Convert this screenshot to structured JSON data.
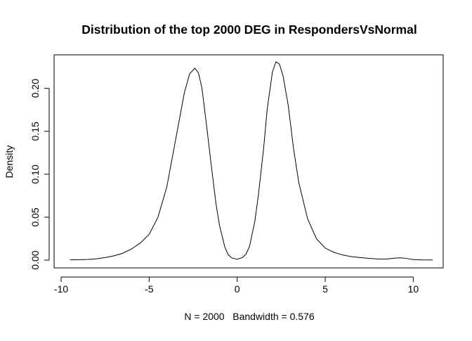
{
  "chart_data": {
    "type": "line",
    "title": "Distribution of the top 2000 DEG in RespondersVsNormal",
    "xlabel": "N = 2000   Bandwidth = 0.576",
    "ylabel": "Density",
    "xlim": [
      -10.4,
      11.7
    ],
    "ylim": [
      -0.009,
      0.239
    ],
    "xticks": [
      -10,
      -5,
      0,
      5,
      10
    ],
    "xtick_labels": [
      "-10",
      "-5",
      "0",
      "5",
      "10"
    ],
    "yticks": [
      0.0,
      0.05,
      0.1,
      0.15,
      0.2
    ],
    "ytick_labels": [
      "0.00",
      "0.05",
      "0.10",
      "0.15",
      "0.20"
    ],
    "grid": false,
    "series": [
      {
        "x": [
          -9.5,
          -9.0,
          -8.5,
          -8.0,
          -7.5,
          -7.0,
          -6.5,
          -6.0,
          -5.5,
          -5.0,
          -4.5,
          -4.0,
          -3.5,
          -3.0,
          -2.7,
          -2.4,
          -2.2,
          -2.0,
          -1.7,
          -1.5,
          -1.2,
          -1.0,
          -0.7,
          -0.5,
          -0.3,
          0.0,
          0.3,
          0.5,
          0.7,
          1.0,
          1.2,
          1.5,
          1.7,
          2.0,
          2.2,
          2.4,
          2.6,
          2.9,
          3.2,
          3.5,
          4.0,
          4.5,
          5.0,
          5.5,
          6.0,
          6.5,
          7.0,
          7.5,
          8.0,
          8.5,
          9.0,
          9.3,
          9.6,
          10.0,
          10.5,
          11.1
        ],
        "y": [
          0.0003,
          0.0005,
          0.0008,
          0.0015,
          0.003,
          0.005,
          0.008,
          0.013,
          0.02,
          0.03,
          0.05,
          0.085,
          0.14,
          0.195,
          0.217,
          0.2235,
          0.218,
          0.2,
          0.15,
          0.115,
          0.065,
          0.04,
          0.015,
          0.006,
          0.0025,
          0.001,
          0.003,
          0.007,
          0.016,
          0.045,
          0.075,
          0.13,
          0.175,
          0.219,
          0.231,
          0.228,
          0.215,
          0.18,
          0.13,
          0.09,
          0.048,
          0.025,
          0.014,
          0.009,
          0.006,
          0.004,
          0.003,
          0.002,
          0.0013,
          0.0013,
          0.0025,
          0.0027,
          0.002,
          0.0007,
          0.0003,
          0.0002
        ]
      }
    ]
  }
}
